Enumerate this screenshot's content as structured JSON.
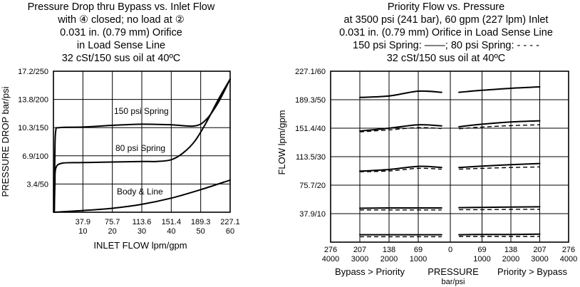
{
  "chart_data": [
    {
      "type": "line",
      "title_lines": [
        "Pressure Drop thru Bypass vs. Inlet Flow",
        "with ④ closed; no load at ②",
        "0.031 in. (0.79 mm) Orifice",
        "in Load Sense Line",
        "32 cSt/150 sus oil at 40ºC"
      ],
      "xlabel": "INLET FLOW lpm/gpm",
      "ylabel": "PRESSURE DROP bar/psi",
      "xlim": [
        0,
        60
      ],
      "ylim": [
        0,
        250
      ],
      "x_ticks": [
        {
          "value": 10,
          "lpm": "37.9",
          "gpm": "10"
        },
        {
          "value": 20,
          "lpm": "75.7",
          "gpm": "20"
        },
        {
          "value": 30,
          "lpm": "113.6",
          "gpm": "30"
        },
        {
          "value": 40,
          "lpm": "151.4",
          "gpm": "40"
        },
        {
          "value": 50,
          "lpm": "189.3",
          "gpm": "50"
        },
        {
          "value": 60,
          "lpm": "227.1",
          "gpm": "60"
        }
      ],
      "y_ticks": [
        {
          "value": 50,
          "label": "3.4/50"
        },
        {
          "value": 100,
          "label": "6.9/100"
        },
        {
          "value": 150,
          "label": "10.3/150"
        },
        {
          "value": 200,
          "label": "13.8/200"
        },
        {
          "value": 250,
          "label": "17.2/250"
        }
      ],
      "grid": true,
      "series": [
        {
          "name": "150 psi Spring",
          "points": [
            [
              0.3,
              2
            ],
            [
              0.5,
              110
            ],
            [
              0.8,
              145
            ],
            [
              2,
              150
            ],
            [
              10,
              151
            ],
            [
              20,
              154
            ],
            [
              30,
              156
            ],
            [
              40,
              155
            ],
            [
              48,
              153
            ],
            [
              52,
              165
            ],
            [
              56,
              195
            ],
            [
              60,
              236
            ]
          ]
        },
        {
          "name": "80 psi Spring",
          "points": [
            [
              0.3,
              2
            ],
            [
              0.5,
              50
            ],
            [
              0.8,
              78
            ],
            [
              3,
              87
            ],
            [
              10,
              88
            ],
            [
              20,
              89
            ],
            [
              30,
              90
            ],
            [
              35,
              90
            ],
            [
              40,
              93
            ],
            [
              44,
              105
            ],
            [
              48,
              126
            ],
            [
              52,
              160
            ],
            [
              56,
              200
            ],
            [
              60,
              236
            ]
          ]
        },
        {
          "name": "Body & Line",
          "points": [
            [
              0.3,
              0
            ],
            [
              10,
              3
            ],
            [
              20,
              7
            ],
            [
              30,
              14
            ],
            [
              40,
              25
            ],
            [
              50,
              40
            ],
            [
              60,
              57
            ]
          ]
        }
      ]
    },
    {
      "type": "line",
      "title_lines": [
        "Priority Flow vs. Pressure",
        "at 3500 psi (241 bar), 60 gpm (227 lpm) Inlet",
        "0.031 in. (0.79 mm) Orifice in Load Sense Line",
        "150 psi Spring: ——; 80 psi Spring: - - - -",
        "32 cSt/150 sus oil at 40ºC"
      ],
      "xlabel": "PRESSURE",
      "xlabel_unit": "bar/psi",
      "x_left_caption": "Bypass > Priority",
      "x_right_caption": "Priority > Bypass",
      "ylabel": "FLOW lpm/gpm",
      "ylim": [
        0,
        60
      ],
      "x_ticks_left": [
        {
          "bar": "276",
          "psi": "4000"
        },
        {
          "bar": "207",
          "psi": "3000"
        },
        {
          "bar": "138",
          "psi": "2000"
        },
        {
          "bar": "69",
          "psi": "1000"
        },
        {
          "bar": "0",
          "psi": ""
        }
      ],
      "x_ticks_right": [
        {
          "bar": "69",
          "psi": "1000"
        },
        {
          "bar": "138",
          "psi": "2000"
        },
        {
          "bar": "207",
          "psi": "3000"
        },
        {
          "bar": "276",
          "psi": "4000"
        }
      ],
      "y_ticks": [
        {
          "value": 10,
          "label": "37.9/10"
        },
        {
          "value": 20,
          "label": "75.7/20"
        },
        {
          "value": 30,
          "label": "113.5/30"
        },
        {
          "value": 40,
          "label": "151.4/40"
        },
        {
          "value": 50,
          "label": "189.3/50"
        },
        {
          "value": 60,
          "label": "227.1/60"
        }
      ],
      "grid": true,
      "series_note": "x in psi; negative = Bypass > Priority side, positive = Priority > Bypass side",
      "series": [
        {
          "style": "solid",
          "group": 1,
          "left": [
            [
              -3000,
              50.8
            ],
            [
              -2000,
              51.3
            ],
            [
              -1000,
              53.0
            ],
            [
              -200,
              52.6
            ]
          ],
          "right": [
            [
              200,
              52.6
            ],
            [
              1000,
              53.3
            ],
            [
              2000,
              54.0
            ],
            [
              3000,
              54.5
            ]
          ]
        },
        {
          "style": "solid",
          "group": 2,
          "left": [
            [
              -3000,
              39.0
            ],
            [
              -2000,
              40.0
            ],
            [
              -1000,
              41.2
            ],
            [
              -200,
              40.8
            ]
          ],
          "right": [
            [
              200,
              40.5
            ],
            [
              1000,
              41.4
            ],
            [
              2000,
              42.2
            ],
            [
              3000,
              42.6
            ]
          ]
        },
        {
          "style": "dashed",
          "group": 2,
          "left": [
            [
              -3000,
              38.7
            ],
            [
              -2000,
              39.4
            ],
            [
              -1000,
              40.2
            ],
            [
              -200,
              39.9
            ]
          ],
          "right": [
            [
              200,
              39.8
            ],
            [
              1000,
              40.4
            ],
            [
              2000,
              40.9
            ],
            [
              3000,
              41.2
            ]
          ]
        },
        {
          "style": "solid",
          "group": 3,
          "left": [
            [
              -3000,
              24.9
            ],
            [
              -2000,
              25.5
            ],
            [
              -1000,
              26.6
            ],
            [
              -200,
              26.2
            ]
          ],
          "right": [
            [
              200,
              26.2
            ],
            [
              1000,
              26.7
            ],
            [
              2000,
              27.2
            ],
            [
              3000,
              27.6
            ]
          ]
        },
        {
          "style": "dashed",
          "group": 3,
          "left": [
            [
              -3000,
              24.7
            ],
            [
              -2000,
              25.0
            ],
            [
              -1000,
              25.9
            ],
            [
              -200,
              25.6
            ]
          ],
          "right": [
            [
              200,
              25.6
            ],
            [
              1000,
              25.9
            ],
            [
              2000,
              26.2
            ],
            [
              3000,
              26.4
            ]
          ]
        },
        {
          "style": "solid",
          "group": 4,
          "left": [
            [
              -3000,
              11.9
            ],
            [
              -2000,
              12.0
            ],
            [
              -1000,
              12.0
            ],
            [
              -200,
              12.0
            ]
          ],
          "right": [
            [
              200,
              12.1
            ],
            [
              1000,
              12.2
            ],
            [
              2000,
              12.3
            ],
            [
              3000,
              12.4
            ]
          ]
        },
        {
          "style": "dashed",
          "group": 4,
          "left": [
            [
              -3000,
              11.3
            ],
            [
              -2000,
              11.3
            ],
            [
              -1000,
              11.3
            ],
            [
              -200,
              11.3
            ]
          ],
          "right": [
            [
              200,
              11.4
            ],
            [
              1000,
              11.4
            ],
            [
              2000,
              11.5
            ],
            [
              3000,
              11.5
            ]
          ]
        },
        {
          "style": "solid",
          "group": 5,
          "left": [
            [
              -3000,
              2.6
            ],
            [
              -2000,
              2.6
            ],
            [
              -1000,
              2.6
            ],
            [
              -200,
              2.6
            ]
          ],
          "right": [
            [
              200,
              2.6
            ],
            [
              1000,
              2.7
            ],
            [
              2000,
              2.7
            ],
            [
              3000,
              2.8
            ]
          ]
        },
        {
          "style": "dashed",
          "group": 5,
          "left": [
            [
              -3000,
              1.9
            ],
            [
              -2000,
              1.9
            ],
            [
              -1000,
              1.9
            ],
            [
              -200,
              1.9
            ]
          ],
          "right": [
            [
              200,
              2.0
            ],
            [
              1000,
              2.0
            ],
            [
              2000,
              2.0
            ],
            [
              3000,
              2.0
            ]
          ]
        }
      ]
    }
  ]
}
